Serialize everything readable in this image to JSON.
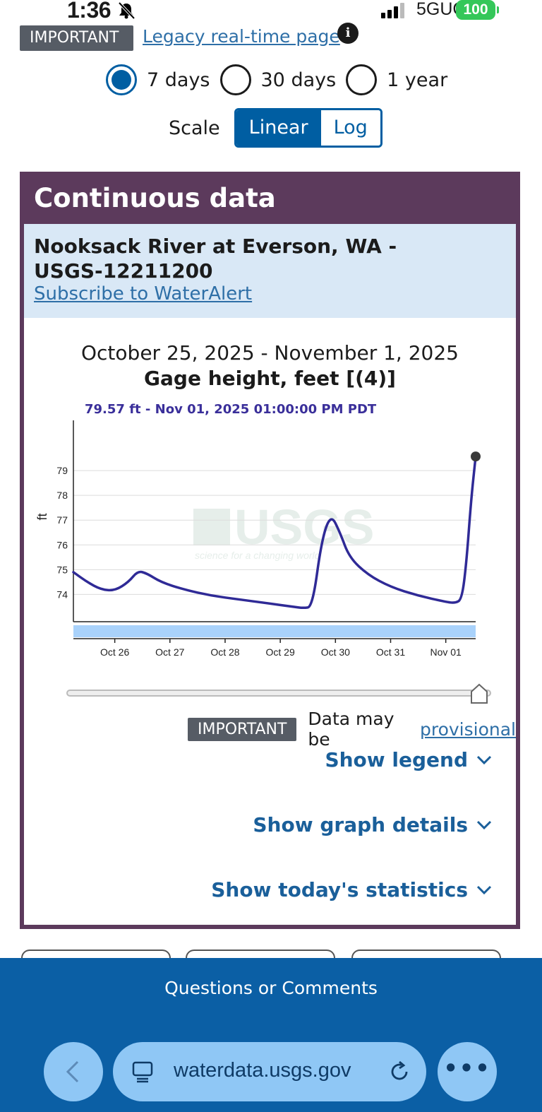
{
  "status_bar": {
    "time": "1:36",
    "network": "5GUC",
    "battery": "100"
  },
  "top": {
    "important_tag": "IMPORTANT",
    "legacy_link": "Legacy real-time page",
    "info_icon": "info-icon"
  },
  "period": {
    "options": [
      {
        "label": "7 days",
        "checked": true
      },
      {
        "label": "30 days",
        "checked": false
      },
      {
        "label": "1 year",
        "checked": false
      }
    ]
  },
  "scale": {
    "label": "Scale",
    "linear": "Linear",
    "log": "Log",
    "selected": "Linear"
  },
  "card": {
    "title": "Continuous data",
    "site_name": "Nooksack River at Everson, WA - USGS-12211200",
    "subscribe_link": "Subscribe to WaterAlert",
    "date_range": "October 25, 2025 - November 1, 2025",
    "parameter_title": "Gage height, feet [(4)]",
    "hover_readout": "79.57 ft - Nov 01, 2025 01:00:00 PM PDT",
    "provisional": {
      "tag": "IMPORTANT",
      "text": "Data may be",
      "link": "provisional"
    },
    "toggles": {
      "legend": "Show legend",
      "graph_details": "Show graph details",
      "statistics": "Show today's statistics"
    }
  },
  "chart_data": {
    "type": "line",
    "ylabel": "ft",
    "yticks": [
      74,
      75,
      76,
      77,
      78,
      79
    ],
    "ylim": [
      72.9,
      80.8
    ],
    "xticks": [
      "Oct 26",
      "Oct 27",
      "Oct 28",
      "Oct 29",
      "Oct 30",
      "Oct 31",
      "Nov 01"
    ],
    "xlim": [
      "Oct 25 06:00",
      "Nov 01 13:00"
    ],
    "grid": "horizontal",
    "watermark": "USGS",
    "watermark_sub": "science for a changing world",
    "line_color": "#2f2a96",
    "series": [
      {
        "points": [
          [
            "Oct 25 06:00",
            74.9
          ],
          [
            "Oct 25 12:00",
            74.5
          ],
          [
            "Oct 25 18:00",
            74.2
          ],
          [
            "Oct 26 00:00",
            74.15
          ],
          [
            "Oct 26 06:00",
            74.5
          ],
          [
            "Oct 26 10:00",
            74.95
          ],
          [
            "Oct 26 14:00",
            74.85
          ],
          [
            "Oct 26 20:00",
            74.5
          ],
          [
            "Oct 27 06:00",
            74.2
          ],
          [
            "Oct 27 18:00",
            73.95
          ],
          [
            "Oct 28 06:00",
            73.8
          ],
          [
            "Oct 28 18:00",
            73.65
          ],
          [
            "Oct 29 06:00",
            73.5
          ],
          [
            "Oct 29 10:00",
            73.45
          ],
          [
            "Oct 29 14:00",
            73.5
          ],
          [
            "Oct 29 18:00",
            76.2
          ],
          [
            "Oct 29 22:00",
            77.25
          ],
          [
            "Oct 30 02:00",
            76.5
          ],
          [
            "Oct 30 06:00",
            75.5
          ],
          [
            "Oct 30 14:00",
            74.8
          ],
          [
            "Oct 31 00:00",
            74.3
          ],
          [
            "Oct 31 12:00",
            73.95
          ],
          [
            "Nov 01 00:00",
            73.7
          ],
          [
            "Nov 01 04:00",
            73.65
          ],
          [
            "Nov 01 07:00",
            73.8
          ],
          [
            "Nov 01 09:00",
            75.3
          ],
          [
            "Nov 01 11:00",
            77.8
          ],
          [
            "Nov 01 13:00",
            79.57
          ]
        ]
      }
    ]
  },
  "footer": {
    "text": "Questions or Comments"
  },
  "browser": {
    "url": "waterdata.usgs.gov",
    "more": "•••"
  }
}
